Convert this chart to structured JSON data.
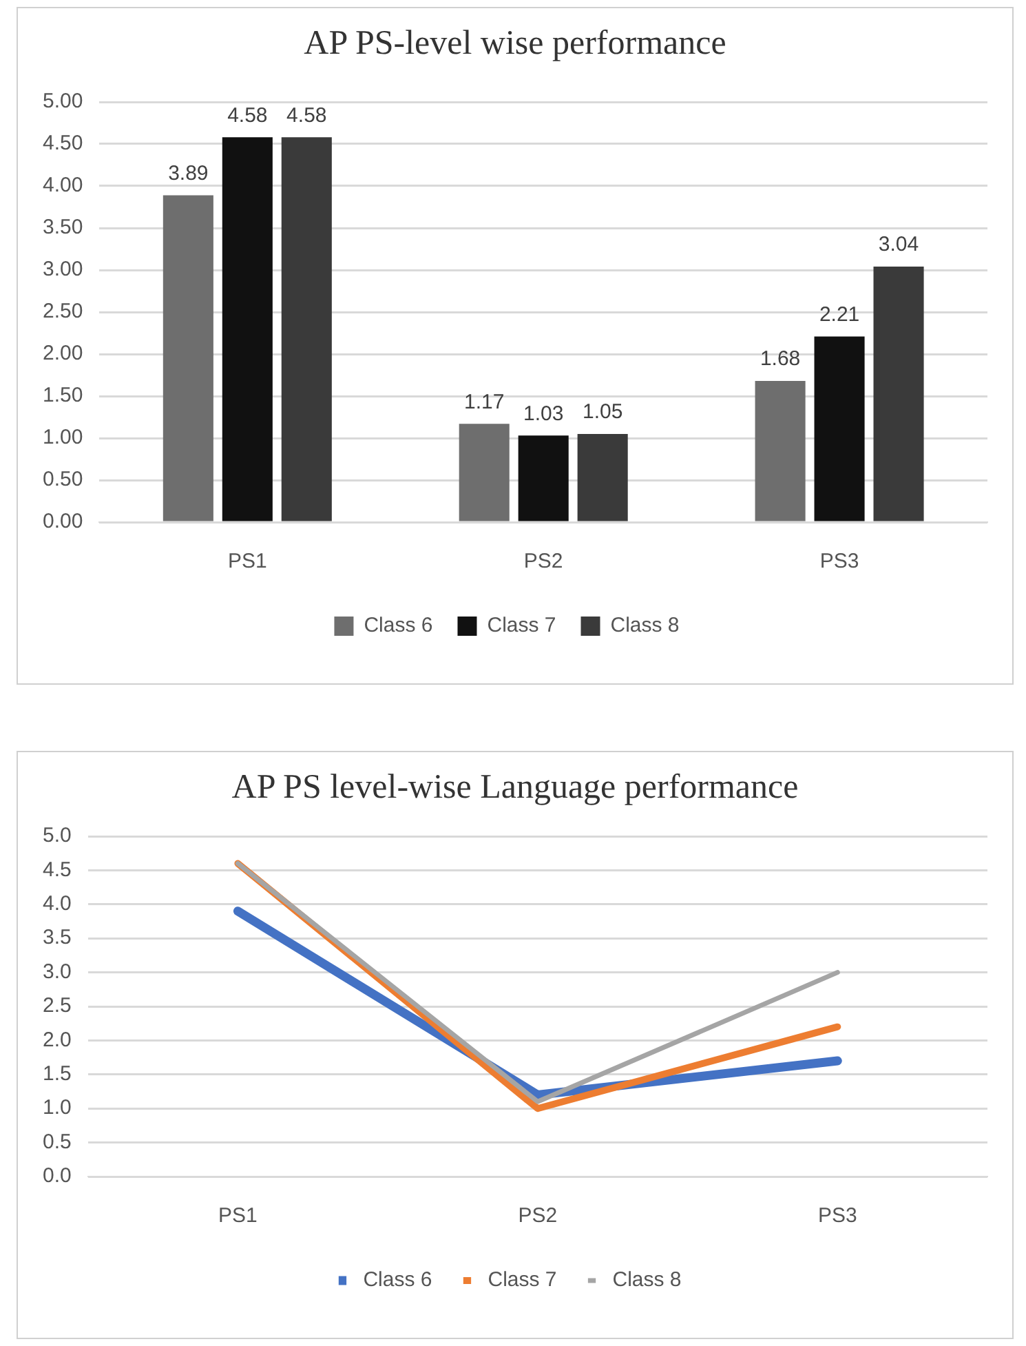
{
  "chart_data": [
    {
      "type": "bar",
      "title": "AP PS-level wise performance",
      "categories": [
        "PS1",
        "PS2",
        "PS3"
      ],
      "series": [
        {
          "name": "Class 6",
          "color": "#6e6e6e",
          "values": [
            3.89,
            1.17,
            1.68
          ]
        },
        {
          "name": "Class 7",
          "color": "#111111",
          "values": [
            4.58,
            1.03,
            2.21
          ]
        },
        {
          "name": "Class 8",
          "color": "#3a3a3a",
          "values": [
            4.58,
            1.05,
            3.04
          ]
        }
      ],
      "ylim": [
        0,
        5
      ],
      "yticks": [
        {
          "value": 0,
          "label": "0.00"
        },
        {
          "value": 0.5,
          "label": "0.50"
        },
        {
          "value": 1,
          "label": "1.00"
        },
        {
          "value": 1.5,
          "label": "1.50"
        },
        {
          "value": 2,
          "label": "2.00"
        },
        {
          "value": 2.5,
          "label": "2.50"
        },
        {
          "value": 3,
          "label": "3.00"
        },
        {
          "value": 3.5,
          "label": "3.50"
        },
        {
          "value": 4,
          "label": "4.00"
        },
        {
          "value": 4.5,
          "label": "4.50"
        },
        {
          "value": 5,
          "label": "5.00"
        }
      ],
      "grid": "y",
      "legend": "bottom",
      "data_labels": true
    },
    {
      "type": "line",
      "title": "AP PS level-wise Language performance",
      "categories": [
        "PS1",
        "PS2",
        "PS3"
      ],
      "series": [
        {
          "name": "Class 6",
          "color": "#4472c4",
          "values": [
            3.9,
            1.2,
            1.7
          ]
        },
        {
          "name": "Class 7",
          "color": "#ed7d31",
          "values": [
            4.6,
            1.0,
            2.2
          ]
        },
        {
          "name": "Class 8",
          "color": "#a5a5a5",
          "values": [
            4.6,
            1.1,
            3.0
          ]
        }
      ],
      "ylim": [
        0,
        5
      ],
      "yticks": [
        {
          "value": 0,
          "label": "0.0"
        },
        {
          "value": 0.5,
          "label": "0.5"
        },
        {
          "value": 1,
          "label": "1.0"
        },
        {
          "value": 1.5,
          "label": "1.5"
        },
        {
          "value": 2,
          "label": "2.0"
        },
        {
          "value": 2.5,
          "label": "2.5"
        },
        {
          "value": 3,
          "label": "3.0"
        },
        {
          "value": 3.5,
          "label": "3.5"
        },
        {
          "value": 4,
          "label": "4.0"
        },
        {
          "value": 4.5,
          "label": "4.5"
        },
        {
          "value": 5,
          "label": "5.0"
        }
      ],
      "grid": "y",
      "legend": "bottom",
      "marker": "none",
      "line_style": "solid"
    }
  ]
}
